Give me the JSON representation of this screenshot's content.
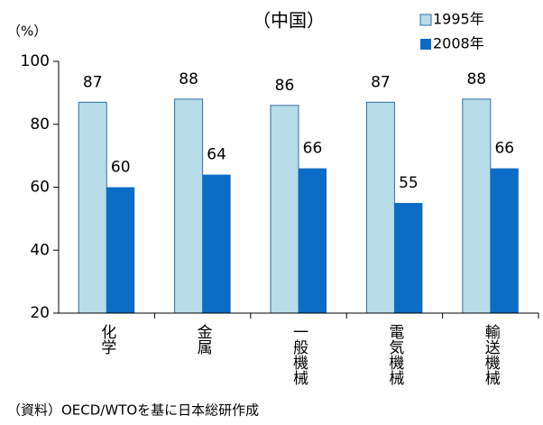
{
  "chart_data": {
    "type": "bar",
    "title": "（中国）",
    "y_label": "（%）",
    "categories": [
      "化学",
      "金属",
      "一般機械",
      "電気機械",
      "輸送機械"
    ],
    "series": [
      {
        "name": "1995年",
        "color": "#b7dde8",
        "values": [
          87,
          88,
          86,
          87,
          88
        ]
      },
      {
        "name": "2008年",
        "color": "#0b6cc5",
        "values": [
          60,
          64,
          66,
          55,
          66
        ]
      }
    ],
    "ylim": [
      20,
      100
    ],
    "yticks": [
      20,
      40,
      60,
      80,
      100
    ],
    "grid": false,
    "legend": "top-right",
    "source": "（資料）OECD/WTOを基に日本総研作成"
  }
}
